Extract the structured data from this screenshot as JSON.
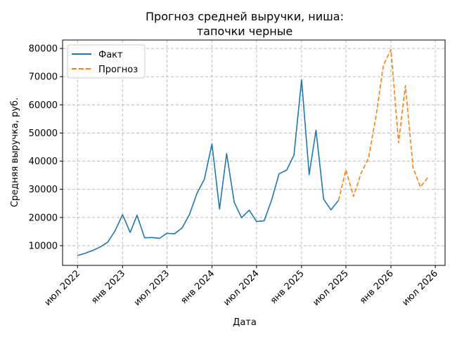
{
  "chart_data": {
    "type": "line",
    "title": [
      "Прогноз средней выручки, ниша:",
      "тапочки черные"
    ],
    "xlabel": "Дата",
    "ylabel": "Средняя выручка, руб.",
    "ylim": [
      3000,
      83000
    ],
    "xlim": [
      "2022-05-01",
      "2026-08-10"
    ],
    "yticks": [
      10000,
      20000,
      30000,
      40000,
      50000,
      60000,
      70000,
      80000
    ],
    "xticks": [
      {
        "date": "2022-07-01",
        "label": "июл 2022"
      },
      {
        "date": "2023-01-01",
        "label": "янв 2023"
      },
      {
        "date": "2023-07-01",
        "label": "июл 2023"
      },
      {
        "date": "2024-01-01",
        "label": "янв 2024"
      },
      {
        "date": "2024-07-01",
        "label": "июл 2024"
      },
      {
        "date": "2025-01-01",
        "label": "янв 2025"
      },
      {
        "date": "2025-07-01",
        "label": "июл 2025"
      },
      {
        "date": "2026-01-01",
        "label": "янв 2026"
      },
      {
        "date": "2026-07-01",
        "label": "июл 2026"
      }
    ],
    "grid": true,
    "legend_position": "top-left",
    "series": [
      {
        "name": "Факт",
        "color": "#1f77b4",
        "style": "solid",
        "points": [
          [
            "2022-07-01",
            6500
          ],
          [
            "2022-08-01",
            7300
          ],
          [
            "2022-09-01",
            8300
          ],
          [
            "2022-10-01",
            9500
          ],
          [
            "2022-11-01",
            11200
          ],
          [
            "2022-12-01",
            15200
          ],
          [
            "2023-01-01",
            21000
          ],
          [
            "2023-02-01",
            14700
          ],
          [
            "2023-03-01",
            20800
          ],
          [
            "2023-04-01",
            12800
          ],
          [
            "2023-05-01",
            12900
          ],
          [
            "2023-06-01",
            12600
          ],
          [
            "2023-07-01",
            14400
          ],
          [
            "2023-08-01",
            14200
          ],
          [
            "2023-09-01",
            16300
          ],
          [
            "2023-10-01",
            21000
          ],
          [
            "2023-11-01",
            28600
          ],
          [
            "2023-12-01",
            33600
          ],
          [
            "2024-01-01",
            46100
          ],
          [
            "2024-02-01",
            23000
          ],
          [
            "2024-03-01",
            42700
          ],
          [
            "2024-04-01",
            25400
          ],
          [
            "2024-05-01",
            19900
          ],
          [
            "2024-06-01",
            22600
          ],
          [
            "2024-07-01",
            18600
          ],
          [
            "2024-08-01",
            18800
          ],
          [
            "2024-09-01",
            26300
          ],
          [
            "2024-10-01",
            35500
          ],
          [
            "2024-11-01",
            36800
          ],
          [
            "2024-12-01",
            42200
          ],
          [
            "2025-01-01",
            68900
          ],
          [
            "2025-02-01",
            35200
          ],
          [
            "2025-03-01",
            51000
          ],
          [
            "2025-04-01",
            26500
          ],
          [
            "2025-05-01",
            22700
          ],
          [
            "2025-06-01",
            26100
          ]
        ]
      },
      {
        "name": "Прогноз",
        "color": "#ff7f0e",
        "style": "dashed",
        "points": [
          [
            "2025-06-01",
            26100
          ],
          [
            "2025-07-01",
            36900
          ],
          [
            "2025-08-01",
            27500
          ],
          [
            "2025-09-01",
            35700
          ],
          [
            "2025-10-01",
            41000
          ],
          [
            "2025-11-01",
            56000
          ],
          [
            "2025-12-01",
            74000
          ],
          [
            "2026-01-01",
            79700
          ],
          [
            "2026-02-01",
            46500
          ],
          [
            "2026-03-01",
            66800
          ],
          [
            "2026-04-01",
            37800
          ],
          [
            "2026-05-01",
            30800
          ],
          [
            "2026-06-01",
            34200
          ]
        ]
      }
    ]
  }
}
